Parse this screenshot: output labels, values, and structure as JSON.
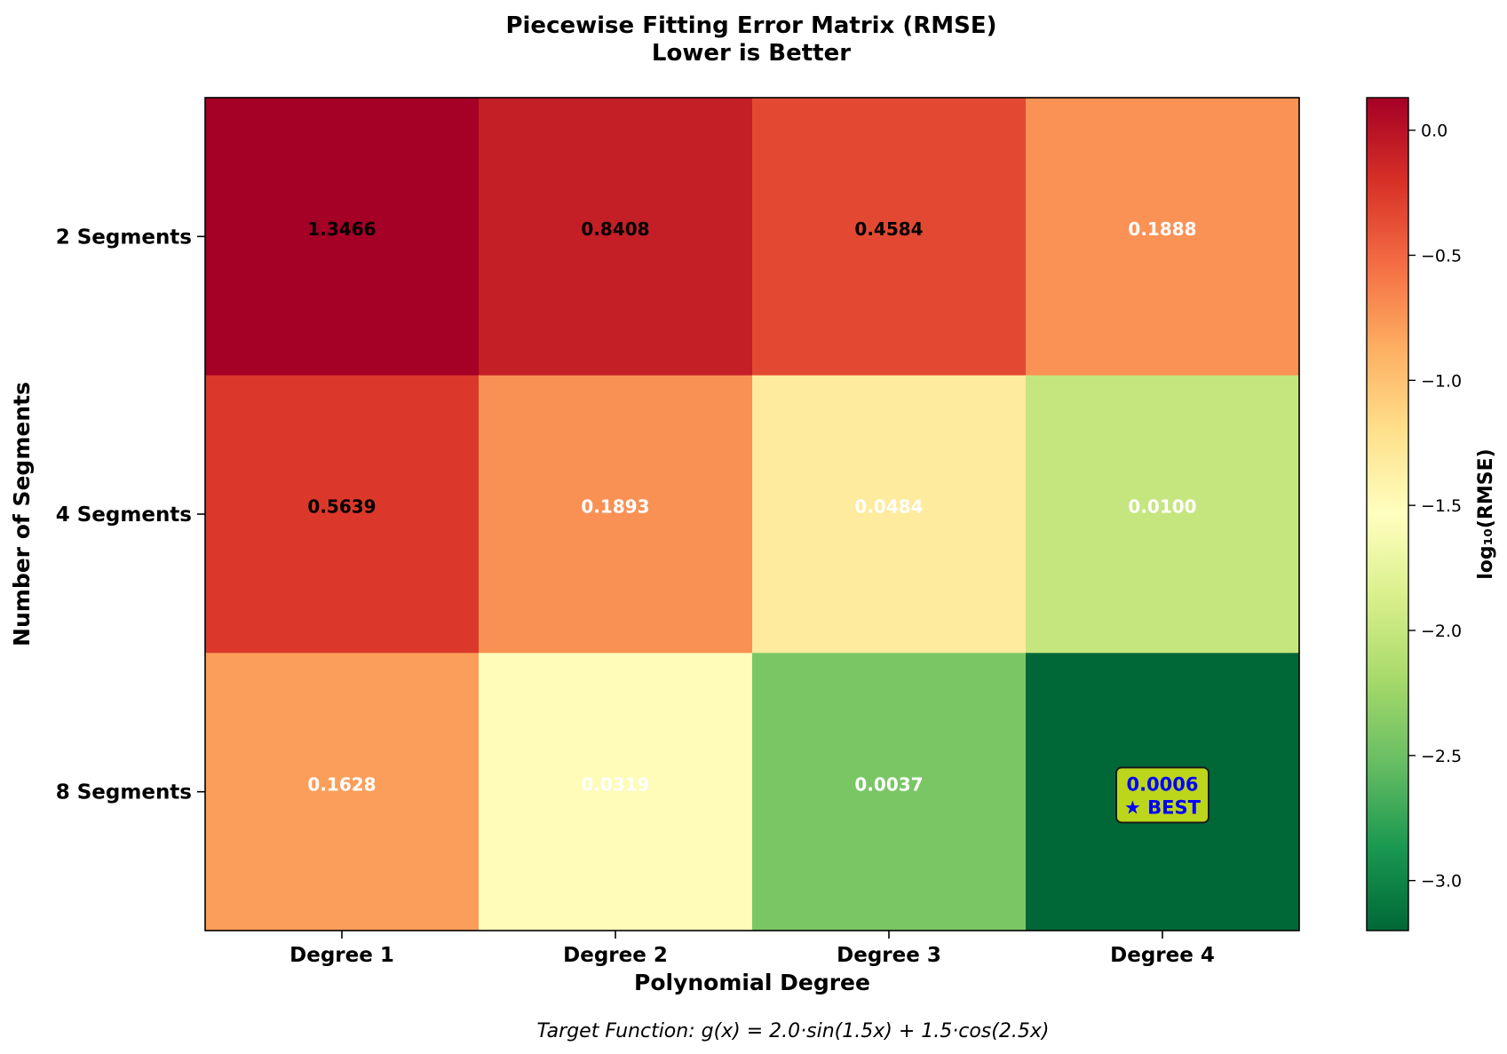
{
  "chart_data": {
    "type": "heatmap",
    "title": "Piecewise Fitting Error Matrix (RMSE)",
    "subtitle": "Lower is Better",
    "xlabel": "Polynomial Degree",
    "ylabel": "Number of Segments",
    "x_categories": [
      "Degree 1",
      "Degree 2",
      "Degree 3",
      "Degree 4"
    ],
    "y_categories": [
      "2 Segments",
      "4 Segments",
      "8 Segments"
    ],
    "values": [
      [
        1.3466,
        0.8408,
        0.4584,
        0.1888
      ],
      [
        0.5639,
        0.1893,
        0.0484,
        0.01
      ],
      [
        0.1628,
        0.0319,
        0.0037,
        0.0006
      ]
    ],
    "value_labels": [
      [
        "1.3466",
        "0.8408",
        "0.4584",
        "0.1888"
      ],
      [
        "0.5639",
        "0.1893",
        "0.0484",
        "0.0100"
      ],
      [
        "0.1628",
        "0.0319",
        "0.0037",
        "0.0006"
      ]
    ],
    "label_colors": [
      [
        "#000000",
        "#000000",
        "#000000",
        "#ffffff"
      ],
      [
        "#000000",
        "#ffffff",
        "#ffffff",
        "#ffffff"
      ],
      [
        "#ffffff",
        "#ffffff",
        "#ffffff",
        "#0000ff"
      ]
    ],
    "best": {
      "row": 2,
      "col": 3,
      "label": "0.0006",
      "tag": "★ BEST",
      "box_color": "#bcd61b"
    },
    "colorscale": "RdYlGn_r",
    "color_range": [
      -3.2,
      0.13
    ],
    "colorbar": {
      "label": "log₁₀(RMSE)",
      "ticks": [
        0.0,
        -0.5,
        -1.0,
        -1.5,
        -2.0,
        -2.5,
        -3.0
      ],
      "tick_labels": [
        "0.0",
        "−0.5",
        "−1.0",
        "−1.5",
        "−2.0",
        "−2.5",
        "−3.0"
      ]
    },
    "footnote": "Target Function: g(x) = 2.0·sin(1.5x) + 1.5·cos(2.5x)",
    "grid": false
  }
}
